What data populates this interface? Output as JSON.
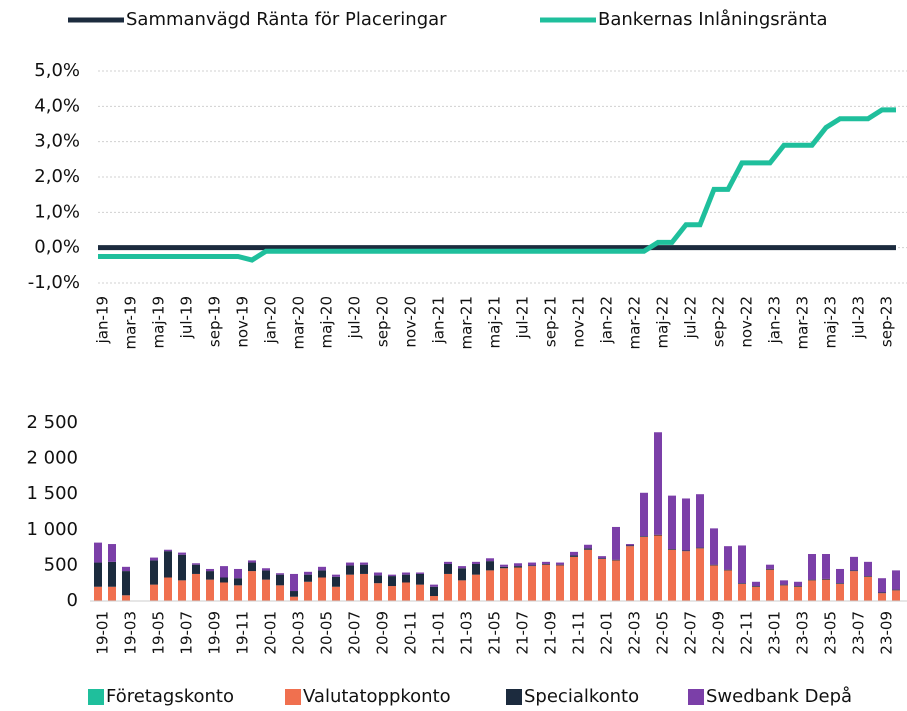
{
  "chart_data": [
    {
      "type": "line",
      "legend": "top",
      "categories": [
        "jan-19",
        null,
        "mar-19",
        null,
        "maj-19",
        null,
        "jul-19",
        null,
        "sep-19",
        null,
        "nov-19",
        null,
        "jan-20",
        null,
        "mar-20",
        null,
        "maj-20",
        null,
        "jul-20",
        null,
        "sep-20",
        null,
        "nov-20",
        null,
        "jan-21",
        null,
        "mar-21",
        null,
        "maj-21",
        null,
        "jul-21",
        null,
        "sep-21",
        null,
        "nov-21",
        null,
        "jan-22",
        null,
        "mar-22",
        null,
        "maj-22",
        null,
        "jul-22",
        null,
        "sep-22",
        null,
        "nov-22",
        null,
        "jan-23",
        null,
        "mar-23",
        null,
        "maj-23",
        null,
        "jul-23",
        null,
        "sep-23",
        null
      ],
      "series": [
        {
          "name": "Sammanvägd Ränta för Placeringar",
          "color": "#1c2b3e",
          "values": [
            0,
            0,
            0,
            0,
            0,
            0,
            0,
            0,
            0,
            0,
            0,
            0,
            0,
            0,
            0,
            0,
            0,
            0,
            0,
            0,
            0,
            0,
            0,
            0,
            0,
            0,
            0,
            0,
            0,
            0,
            0,
            0,
            0,
            0,
            0,
            0,
            0,
            0,
            0,
            0,
            0,
            0,
            0,
            0,
            0,
            0,
            0,
            0,
            0,
            0,
            0,
            0,
            0,
            0,
            0,
            0,
            0,
            0
          ]
        },
        {
          "name": "Bankernas Inlåningsränta",
          "color": "#1fbf9c",
          "values": [
            -0.25,
            -0.25,
            -0.25,
            -0.25,
            -0.25,
            -0.25,
            -0.25,
            -0.25,
            -0.25,
            -0.25,
            -0.25,
            -0.35,
            -0.1,
            -0.1,
            -0.1,
            -0.1,
            -0.1,
            -0.1,
            -0.1,
            -0.1,
            -0.1,
            -0.1,
            -0.1,
            -0.1,
            -0.1,
            -0.1,
            -0.1,
            -0.1,
            -0.1,
            -0.1,
            -0.1,
            -0.1,
            -0.1,
            -0.1,
            -0.1,
            -0.1,
            -0.1,
            -0.1,
            -0.1,
            -0.1,
            0.15,
            0.15,
            0.65,
            0.65,
            1.65,
            1.65,
            2.4,
            2.4,
            2.4,
            2.9,
            2.9,
            2.9,
            3.4,
            3.65,
            3.65,
            3.65,
            3.9,
            3.9
          ]
        }
      ],
      "ylim": [
        -1,
        5
      ],
      "yticks": [
        {
          "value": -1,
          "label": "-1,0%"
        },
        {
          "value": 0,
          "label": "0,0%"
        },
        {
          "value": 1,
          "label": "1,0%"
        },
        {
          "value": 2,
          "label": "2,0%"
        },
        {
          "value": 3,
          "label": "3,0%"
        },
        {
          "value": 4,
          "label": "4,0%"
        },
        {
          "value": 5,
          "label": "5,0%"
        }
      ],
      "grid": true
    },
    {
      "type": "bar",
      "stacked": true,
      "legend": "bottom",
      "categories": [
        "19-01",
        null,
        "19-03",
        null,
        "19-05",
        null,
        "19-07",
        null,
        "19-09",
        null,
        "19-11",
        null,
        "20-01",
        null,
        "20-03",
        null,
        "20-05",
        null,
        "20-07",
        null,
        "20-09",
        null,
        "20-11",
        null,
        "21-01",
        null,
        "21-03",
        null,
        "21-05",
        null,
        "21-07",
        null,
        "21-09",
        null,
        "21-11",
        null,
        "22-01",
        null,
        "22-03",
        null,
        "22-05",
        null,
        "22-07",
        null,
        "22-09",
        null,
        "22-11",
        null,
        "23-01",
        null,
        "23-03",
        null,
        "23-05",
        null,
        "23-07",
        null,
        "23-09",
        null
      ],
      "series": [
        {
          "name": "Företagskonto",
          "color": "#1fbf9c",
          "values": [
            0,
            0,
            0,
            0,
            0,
            0,
            0,
            0,
            0,
            0,
            0,
            0,
            0,
            0,
            0,
            0,
            0,
            0,
            0,
            0,
            0,
            0,
            0,
            0,
            0,
            0,
            0,
            0,
            0,
            0,
            0,
            0,
            0,
            0,
            0,
            0,
            0,
            0,
            0,
            0,
            0,
            0,
            0,
            0,
            0,
            0,
            0,
            0,
            0,
            0,
            0,
            0,
            0,
            0,
            0,
            0,
            0,
            0
          ]
        },
        {
          "name": "Valutatoppkonto",
          "color": "#f0704f",
          "values": [
            200,
            200,
            80,
            0,
            230,
            330,
            290,
            380,
            300,
            260,
            220,
            420,
            300,
            220,
            60,
            270,
            330,
            200,
            370,
            380,
            250,
            210,
            260,
            230,
            70,
            380,
            290,
            370,
            430,
            460,
            470,
            490,
            510,
            500,
            620,
            720,
            590,
            570,
            770,
            900,
            920,
            720,
            700,
            740,
            500,
            430,
            240,
            200,
            440,
            220,
            200,
            290,
            300,
            240,
            420,
            340,
            110,
            150
          ]
        },
        {
          "name": "Specialkonto",
          "color": "#1c2b3e",
          "values": [
            340,
            350,
            340,
            0,
            340,
            370,
            360,
            130,
            120,
            70,
            100,
            120,
            130,
            150,
            80,
            100,
            100,
            140,
            130,
            130,
            110,
            140,
            110,
            150,
            130,
            140,
            170,
            150,
            130,
            20,
            20,
            10,
            10,
            10,
            20,
            20,
            10,
            10,
            10,
            10,
            10,
            10,
            10,
            10,
            10,
            10,
            10,
            10,
            10,
            10,
            10,
            10,
            10,
            10,
            10,
            10,
            10,
            10
          ]
        },
        {
          "name": "Swedbank Depå",
          "color": "#7b3fa8",
          "values": [
            280,
            250,
            60,
            0,
            40,
            20,
            30,
            20,
            30,
            160,
            130,
            30,
            30,
            20,
            240,
            40,
            50,
            30,
            40,
            30,
            40,
            20,
            30,
            20,
            30,
            30,
            30,
            30,
            40,
            30,
            40,
            40,
            30,
            30,
            50,
            50,
            30,
            460,
            20,
            610,
            1440,
            750,
            730,
            750,
            510,
            330,
            530,
            60,
            60,
            60,
            60,
            360,
            350,
            200,
            190,
            200,
            200,
            270
          ]
        }
      ],
      "ylim": [
        0,
        2500
      ],
      "yticks": [
        0,
        500,
        {
          "value": 1000,
          "label": "1 000"
        },
        {
          "value": 1500,
          "label": "1 500"
        },
        {
          "value": 2000,
          "label": "2 000"
        },
        {
          "value": 2500,
          "label": "2 500"
        }
      ],
      "grid": false
    }
  ]
}
